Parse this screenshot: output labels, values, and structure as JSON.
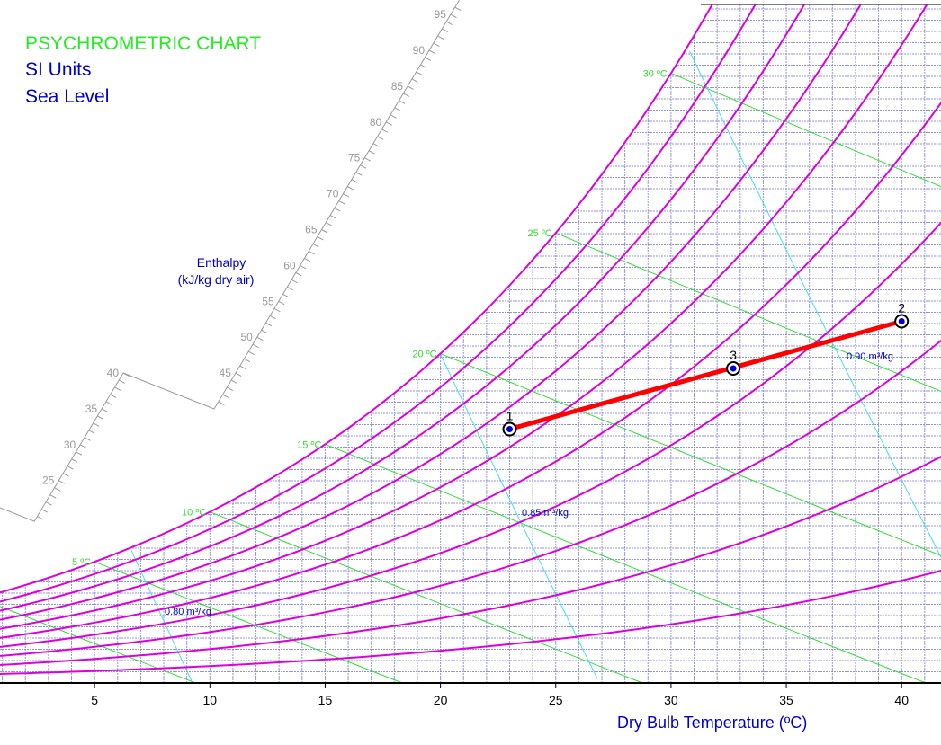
{
  "chart_data": {
    "type": "line",
    "title": "PSYCHROMETRIC CHART",
    "subtitle_units": "SI Units",
    "subtitle_altitude": "Sea Level",
    "xlabel": "Dry Bulb Temperature (ºC)",
    "xlim": [
      0.9,
      41.7
    ],
    "ylim_humidity_ratio_g_per_kg": [
      0,
      30.2
    ],
    "x_ticks": [
      "5",
      "10",
      "15",
      "20",
      "25",
      "30",
      "35",
      "40"
    ],
    "x_tick_values": [
      5,
      10,
      15,
      20,
      25,
      30,
      35,
      40
    ],
    "grid": true,
    "grid_step_temperature_c": 1,
    "grid_step_humidity_g_per_kg": 0.5,
    "relative_humidity_curves_percent": [
      10,
      20,
      30,
      40,
      50,
      60,
      70,
      80,
      90,
      100
    ],
    "wet_bulb_lines": [
      {
        "value": 0,
        "label": ""
      },
      {
        "value": 5,
        "label": "5 ºC"
      },
      {
        "value": 10,
        "label": "10 ºC"
      },
      {
        "value": 15,
        "label": "15 ºC"
      },
      {
        "value": 20,
        "label": "20 ºC"
      },
      {
        "value": 25,
        "label": "25 ºC"
      },
      {
        "value": 30,
        "label": "30 ºC"
      }
    ],
    "specific_volume_lines": [
      {
        "value": 0.8,
        "label": "0.80 m³/kg"
      },
      {
        "value": 0.85,
        "label": "0.85 m³/kg"
      },
      {
        "value": 0.9,
        "label": "0.90 m³/kg"
      }
    ],
    "enthalpy_scale": {
      "label_line1": "Enthalpy",
      "label_line2": "(kJ/kg dry air)",
      "tick_labels": [
        "25",
        "30",
        "35",
        "40",
        "45",
        "50",
        "55",
        "60",
        "65",
        "70",
        "75",
        "80",
        "85",
        "90",
        "95"
      ]
    },
    "state_points": [
      {
        "label": "1",
        "dry_bulb_c": 23.0,
        "humidity_ratio_g_per_kg": 11.3
      },
      {
        "label": "2",
        "dry_bulb_c": 40.0,
        "humidity_ratio_g_per_kg": 16.1
      },
      {
        "label": "3",
        "dry_bulb_c": 32.7,
        "humidity_ratio_g_per_kg": 14.0
      }
    ],
    "process_line": {
      "from": "1",
      "to": "2",
      "color": "#ff0000"
    },
    "colors": {
      "title": "#22ee22",
      "subtitle": "#0000cc",
      "rh": "#dd00dd",
      "wet_bulb": "#33dd33",
      "volume": "#44ddee",
      "grid": "#7777dd",
      "enthalpy_scale": "#999999"
    }
  }
}
